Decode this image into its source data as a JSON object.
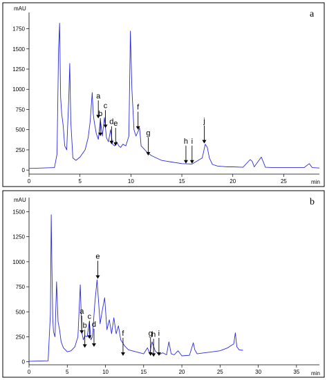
{
  "chart_data": [
    {
      "panel_label": "a",
      "type": "line",
      "ylabel": "mAU",
      "xlabel": "min",
      "xlim": [
        0,
        28.5
      ],
      "ylim": [
        -50,
        1900
      ],
      "x_ticks": [
        0,
        5,
        10,
        15,
        20,
        25
      ],
      "y_ticks": [
        0,
        250,
        500,
        750,
        1000,
        1250,
        1500,
        1750
      ],
      "series": [
        {
          "x": [
            0,
            2.5,
            2.75,
            2.9,
            3.0,
            3.1,
            3.2,
            3.35,
            3.5,
            3.7,
            3.9,
            4.0,
            4.1,
            4.3,
            4.6,
            5.0,
            5.5,
            5.8,
            6.0,
            6.2,
            6.3,
            6.4,
            6.6,
            6.8,
            7.0,
            7.2,
            7.4,
            7.6,
            7.8,
            8.0,
            8.2,
            8.4,
            8.6,
            8.8,
            9.0,
            9.2,
            9.5,
            9.8,
            9.95,
            10.1,
            10.3,
            10.5,
            10.7,
            10.85,
            11.0,
            11.3,
            11.6,
            12.0,
            12.5,
            13.0,
            13.5,
            14.0,
            15.0,
            16.0,
            17.0,
            17.3,
            17.5,
            17.7,
            18.0,
            18.5,
            19.0,
            19.5,
            20.0,
            21.0,
            21.7,
            21.9,
            22.1,
            22.8,
            23.0,
            23.2,
            24.0,
            25.0,
            26.0,
            27.0,
            27.5,
            27.8,
            28.5
          ],
          "y": [
            20,
            30,
            200,
            1500,
            1820,
            900,
            700,
            550,
            300,
            250,
            900,
            1320,
            600,
            150,
            120,
            160,
            250,
            400,
            600,
            960,
            700,
            600,
            450,
            380,
            620,
            420,
            650,
            400,
            350,
            500,
            320,
            300,
            350,
            300,
            280,
            320,
            300,
            420,
            1720,
            1000,
            500,
            420,
            480,
            520,
            300,
            260,
            220,
            180,
            150,
            120,
            110,
            100,
            80,
            75,
            150,
            320,
            280,
            150,
            70,
            50,
            45,
            40,
            40,
            35,
            130,
            110,
            40,
            160,
            100,
            35,
            30,
            30,
            30,
            30,
            80,
            30,
            25
          ]
        }
      ],
      "peak_labels": [
        {
          "text": "a",
          "x": 6.8,
          "y": 640
        },
        {
          "text": "b",
          "x": 7.0,
          "y": 420
        },
        {
          "text": "c",
          "x": 7.5,
          "y": 520
        },
        {
          "text": "d",
          "x": 8.1,
          "y": 320
        },
        {
          "text": "e",
          "x": 8.5,
          "y": 300
        },
        {
          "text": "f",
          "x": 10.7,
          "y": 500
        },
        {
          "text": "g",
          "x": 11.7,
          "y": 180
        },
        {
          "text": "h",
          "x": 15.4,
          "y": 80
        },
        {
          "text": "i",
          "x": 16.0,
          "y": 80
        },
        {
          "text": "j",
          "x": 17.2,
          "y": 330
        }
      ]
    },
    {
      "panel_label": "b",
      "type": "line",
      "ylabel": "mAU",
      "xlabel": "min",
      "xlim": [
        0,
        38
      ],
      "ylim": [
        -30,
        1600
      ],
      "x_ticks": [
        0,
        5,
        10,
        15,
        20,
        25,
        30,
        35
      ],
      "y_ticks": [
        0,
        250,
        500,
        750,
        1000,
        1250,
        1500
      ],
      "series": [
        {
          "x": [
            0,
            2.5,
            2.8,
            2.9,
            3.0,
            3.1,
            3.2,
            3.4,
            3.6,
            3.8,
            4.0,
            4.2,
            4.5,
            5.0,
            5.5,
            6.0,
            6.4,
            6.7,
            6.9,
            7.1,
            7.3,
            7.6,
            7.9,
            8.1,
            8.3,
            8.6,
            8.9,
            9.1,
            9.3,
            9.6,
            9.9,
            10.2,
            10.5,
            10.8,
            11.1,
            11.4,
            11.7,
            12.0,
            12.5,
            13.0,
            14.0,
            15.0,
            15.5,
            15.8,
            16.1,
            16.5,
            17.0,
            17.5,
            18.0,
            18.3,
            18.6,
            19.0,
            19.5,
            20.0,
            21.0,
            21.5,
            21.7,
            22.0,
            23.0,
            24.0,
            25.0,
            26.0,
            26.8,
            27.0,
            27.2,
            27.5,
            28.0
          ],
          "y": [
            5,
            10,
            480,
            1470,
            900,
            430,
            300,
            250,
            800,
            400,
            320,
            200,
            140,
            100,
            110,
            150,
            250,
            770,
            300,
            220,
            260,
            250,
            400,
            220,
            250,
            580,
            820,
            600,
            380,
            520,
            640,
            320,
            420,
            280,
            440,
            280,
            360,
            220,
            160,
            120,
            100,
            80,
            140,
            80,
            200,
            110,
            70,
            90,
            70,
            200,
            80,
            70,
            110,
            60,
            65,
            190,
            120,
            80,
            90,
            100,
            110,
            140,
            180,
            290,
            150,
            120,
            115
          ]
        }
      ],
      "peak_labels": [
        {
          "text": "a",
          "x": 6.9,
          "y": 280
        },
        {
          "text": "b",
          "x": 7.3,
          "y": 140
        },
        {
          "text": "c",
          "x": 7.9,
          "y": 230
        },
        {
          "text": "d",
          "x": 8.5,
          "y": 150
        },
        {
          "text": "e",
          "x": 9.0,
          "y": 830
        },
        {
          "text": "f",
          "x": 12.3,
          "y": 60
        },
        {
          "text": "g",
          "x": 15.9,
          "y": 60
        },
        {
          "text": "h",
          "x": 16.3,
          "y": 50
        },
        {
          "text": "i",
          "x": 17.0,
          "y": 60
        }
      ]
    }
  ]
}
